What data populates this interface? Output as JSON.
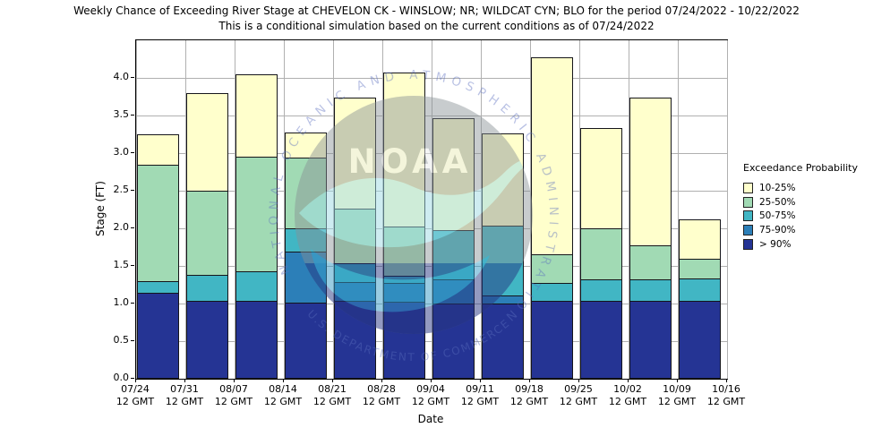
{
  "header": {
    "title": "Weekly Chance of Exceeding River Stage at CHEVELON CK - WINSLOW; NR; WILDCAT CYN; BLO for the period 07/24/2022 - 10/22/2022",
    "subtitle": "This is a conditional simulation based on the current conditions as of 07/24/2022"
  },
  "chart_data": {
    "type": "bar",
    "stacked": true,
    "title": "Weekly Chance of Exceeding River Stage at CHEVELON CK - WINSLOW; NR; WILDCAT CYN; BLO for the period 07/24/2022 - 10/22/2022",
    "subtitle": "This is a conditional simulation based on the current conditions as of 07/24/2022",
    "xlabel": "Date",
    "ylabel": "Stage (FT)",
    "ylim": [
      0,
      4.5
    ],
    "grid": true,
    "ytick_values": [
      0.0,
      0.5,
      1.0,
      1.5,
      2.0,
      2.5,
      3.0,
      3.5,
      4.0
    ],
    "ytick_labels": [
      "0.0",
      "0.5",
      "1.0",
      "1.5",
      "2.0",
      "2.5",
      "3.0",
      "3.5",
      "4.0"
    ],
    "x_categories": [
      {
        "date": "07/24",
        "time": "12 GMT"
      },
      {
        "date": "07/31",
        "time": "12 GMT"
      },
      {
        "date": "08/07",
        "time": "12 GMT"
      },
      {
        "date": "08/14",
        "time": "12 GMT"
      },
      {
        "date": "08/21",
        "time": "12 GMT"
      },
      {
        "date": "08/28",
        "time": "12 GMT"
      },
      {
        "date": "09/04",
        "time": "12 GMT"
      },
      {
        "date": "09/11",
        "time": "12 GMT"
      },
      {
        "date": "09/18",
        "time": "12 GMT"
      },
      {
        "date": "09/25",
        "time": "12 GMT"
      },
      {
        "date": "10/02",
        "time": "12 GMT"
      },
      {
        "date": "10/09",
        "time": "12 GMT"
      },
      {
        "date": "10/16",
        "time": "12 GMT"
      }
    ],
    "colors": {
      "10-25%": "#ffffcc",
      "25-50%": "#a1dab4",
      "50-75%": "#41b6c4",
      "75-90%": "#2c7fb8",
      ">90%": "#253494"
    },
    "band_order_bottom_to_top": [
      "gt90",
      "p75_90",
      "p50_75",
      "p25_50",
      "p10_25"
    ],
    "band_color_keys": {
      "gt90": ">90%",
      "p75_90": "75-90%",
      "p50_75": "50-75%",
      "p25_50": "25-50%",
      "p10_25": "10-25%"
    },
    "bars": [
      {
        "week_start": "07/24",
        "tops_ft": {
          "gt90": 1.14,
          "p75_90": 1.14,
          "p50_75": 1.3,
          "p25_50": 2.84,
          "p10_25": 3.25
        }
      },
      {
        "week_start": "07/31",
        "tops_ft": {
          "gt90": 1.03,
          "p75_90": 1.03,
          "p50_75": 1.38,
          "p25_50": 2.5,
          "p10_25": 3.8
        }
      },
      {
        "week_start": "08/07",
        "tops_ft": {
          "gt90": 1.03,
          "p75_90": 1.03,
          "p50_75": 1.43,
          "p25_50": 2.95,
          "p10_25": 4.05
        }
      },
      {
        "week_start": "08/14",
        "tops_ft": {
          "gt90": 1.01,
          "p75_90": 1.69,
          "p50_75": 2.0,
          "p25_50": 2.94,
          "p10_25": 3.27
        }
      },
      {
        "week_start": "08/21",
        "tops_ft": {
          "gt90": 1.04,
          "p75_90": 1.29,
          "p50_75": 1.53,
          "p25_50": 2.26,
          "p10_25": 3.74
        }
      },
      {
        "week_start": "08/28",
        "tops_ft": {
          "gt90": 1.02,
          "p75_90": 1.27,
          "p50_75": 1.37,
          "p25_50": 2.02,
          "p10_25": 4.07
        }
      },
      {
        "week_start": "09/04",
        "tops_ft": {
          "gt90": 1.0,
          "p75_90": 1.32,
          "p50_75": 1.98,
          "p25_50": 1.98,
          "p10_25": 3.46
        }
      },
      {
        "week_start": "09/11",
        "tops_ft": {
          "gt90": 1.0,
          "p75_90": 1.11,
          "p50_75": 2.04,
          "p25_50": 2.04,
          "p10_25": 3.26
        }
      },
      {
        "week_start": "09/18",
        "tops_ft": {
          "gt90": 1.03,
          "p75_90": 1.03,
          "p50_75": 1.27,
          "p25_50": 1.66,
          "p10_25": 4.27
        }
      },
      {
        "week_start": "09/25",
        "tops_ft": {
          "gt90": 1.03,
          "p75_90": 1.03,
          "p50_75": 1.32,
          "p25_50": 2.0,
          "p10_25": 3.33
        }
      },
      {
        "week_start": "10/02",
        "tops_ft": {
          "gt90": 1.04,
          "p75_90": 1.04,
          "p50_75": 1.32,
          "p25_50": 1.77,
          "p10_25": 3.74
        }
      },
      {
        "week_start": "10/09",
        "tops_ft": {
          "gt90": 1.04,
          "p75_90": 1.04,
          "p50_75": 1.33,
          "p25_50": 1.6,
          "p10_25": 2.12
        }
      }
    ],
    "legend": {
      "title": "Exceedance Probability",
      "position": "right",
      "items": [
        {
          "label": "10-25%",
          "color": "#ffffcc"
        },
        {
          "label": "25-50%",
          "color": "#a1dab4"
        },
        {
          "label": "50-75%",
          "color": "#41b6c4"
        },
        {
          "label": "75-90%",
          "color": "#2c7fb8"
        },
        {
          "label": "> 90%",
          "color": "#253494"
        }
      ]
    },
    "watermark": {
      "acronym": "NOAA",
      "arc_text_top": "NATIONAL OCEANIC AND ATMOSPHERIC ADMINISTRATION",
      "arc_text_bottom": "U.S. DEPARTMENT OF COMMERCE"
    }
  }
}
